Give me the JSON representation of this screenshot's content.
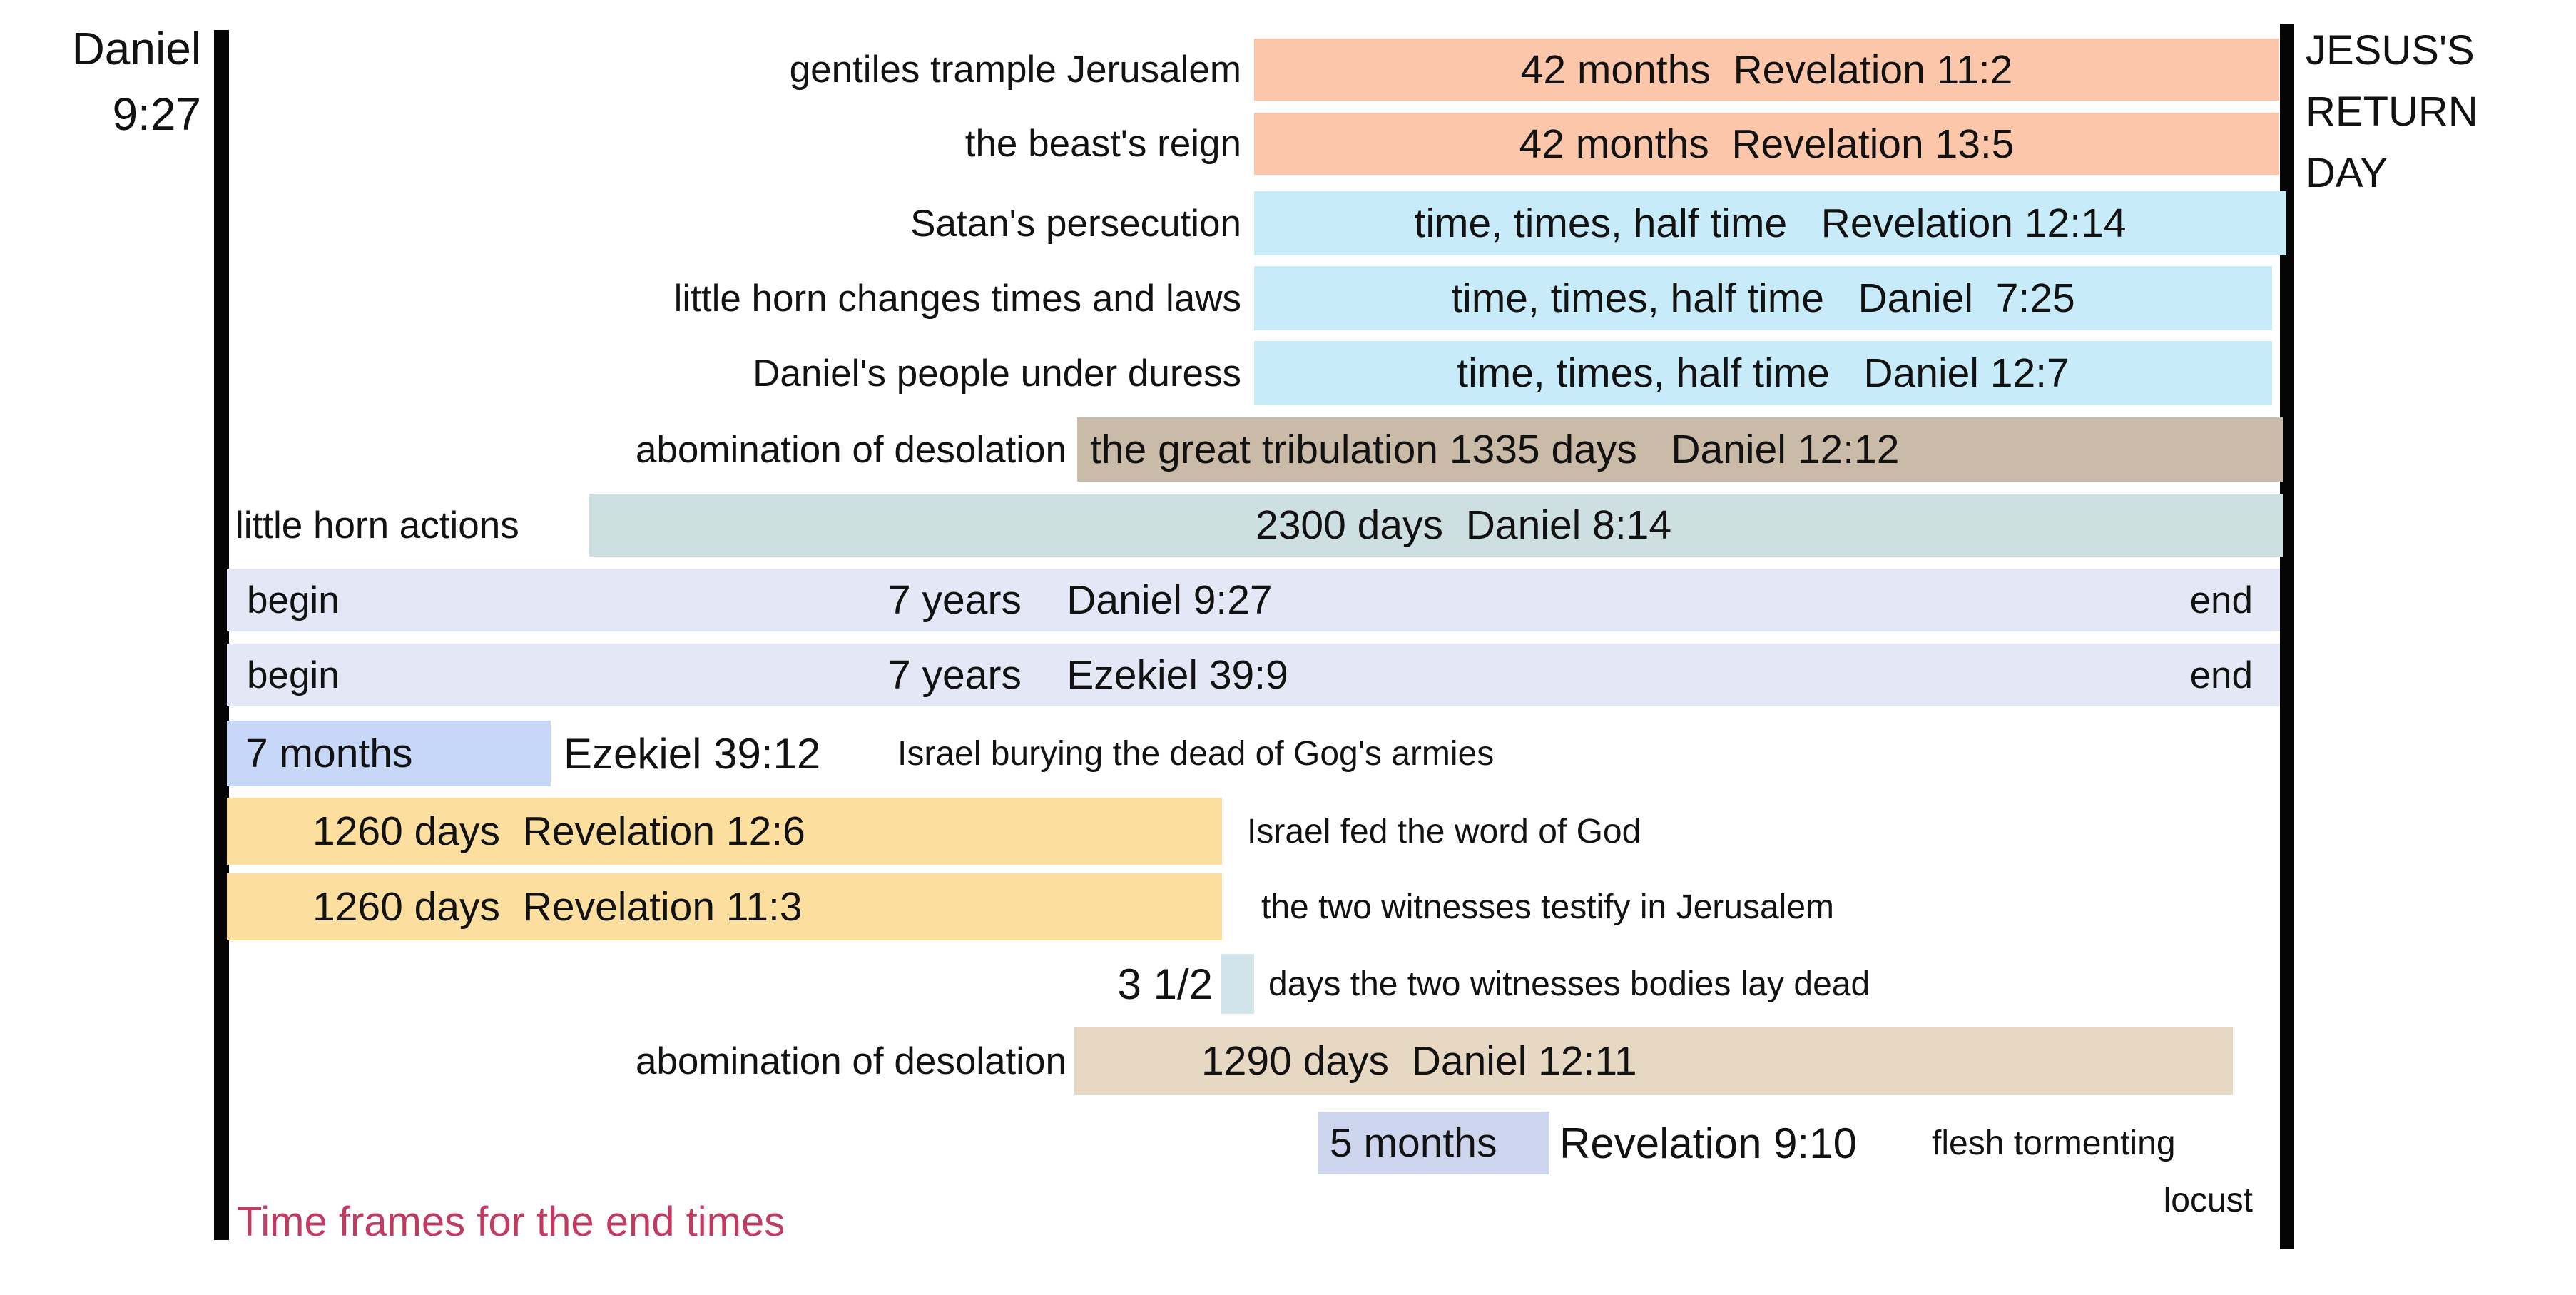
{
  "markers": {
    "left": {
      "line1": "Daniel",
      "line2": "9:27"
    },
    "right": {
      "line1": "JESUS'S",
      "line2": "RETURN",
      "line3": "DAY"
    }
  },
  "title": {
    "text": "Time frames for the end times",
    "color": "#c23a62"
  },
  "chart_data": {
    "type": "gantt",
    "axis": {
      "start": "Daniel 9:27",
      "end": "JESUS'S RETURN DAY"
    },
    "legend_position": "none",
    "rows": [
      {
        "event": "gentiles trample Jerusalem",
        "duration": "42 months",
        "reference": "Revelation 11:2",
        "bar_text": "42 months  Revelation 11:2",
        "color": "#fbc6a9",
        "span": [
          0.5,
          1.0
        ]
      },
      {
        "event": "the beast's reign",
        "duration": "42 months",
        "reference": "Revelation 13:5",
        "bar_text": "42 months  Revelation 13:5",
        "color": "#fbc6a9",
        "span": [
          0.5,
          1.0
        ]
      },
      {
        "event": "Satan's persecution",
        "duration": "time, times, half time",
        "reference": "Revelation 12:14",
        "bar_text": "time, times, half time   Revelation 12:14",
        "color": "#c8ebfa",
        "span": [
          0.5,
          1.0
        ]
      },
      {
        "event": "little horn changes times and laws",
        "duration": "time, times, half time",
        "reference": "Daniel  7:25",
        "bar_text": "time, times, half time   Daniel  7:25",
        "color": "#c8ebfa",
        "span": [
          0.5,
          1.0
        ]
      },
      {
        "event": "Daniel's people under duress",
        "duration": "time, times, half time",
        "reference": "Daniel 12:7",
        "bar_text": "time, times, half time   Daniel 12:7",
        "color": "#c8ebfa",
        "span": [
          0.5,
          1.0
        ]
      },
      {
        "event": "abomination of desolation",
        "duration": "1335 days",
        "reference": "Daniel 12:12",
        "bar_text": "the great tribulation 1335 days   Daniel 12:12",
        "color": "#cabba8",
        "span": [
          0.41,
          1.0
        ]
      },
      {
        "event": "little horn actions",
        "duration": "2300 days",
        "reference": "Daniel 8:14",
        "bar_text": "2300 days  Daniel 8:14",
        "color": "#cedfe2",
        "span": [
          0.18,
          1.0
        ]
      },
      {
        "begin_label": "begin",
        "end_label": "end",
        "duration": "7 years",
        "reference": "Daniel 9:27",
        "bar_text": "7 years    Daniel 9:27",
        "color": "#e4e7f5",
        "span": [
          0.0,
          1.0
        ]
      },
      {
        "begin_label": "begin",
        "end_label": "end",
        "duration": "7 years",
        "reference": "Ezekiel 39:9",
        "bar_text": "7 years    Ezekiel 39:9",
        "color": "#e4e7f5",
        "span": [
          0.0,
          1.0
        ]
      },
      {
        "duration": "7 months",
        "reference": "Ezekiel 39:12",
        "bar_text": "7 months",
        "annotation": "Israel burying the dead of Gog's armies",
        "color": "#c7d7f8",
        "span": [
          0.0,
          0.16
        ]
      },
      {
        "duration": "1260 days",
        "reference": "Revelation 12:6",
        "bar_text": "1260 days  Revelation 12:6",
        "annotation": "Israel fed the word of God",
        "color": "#fcdf9e",
        "span": [
          0.0,
          0.48
        ]
      },
      {
        "duration": "1260 days",
        "reference": "Revelation 11:3",
        "bar_text": "1260 days  Revelation 11:3",
        "annotation": "the two witnesses testify in Jerusalem",
        "color": "#fcdf9e",
        "span": [
          0.0,
          0.48
        ]
      },
      {
        "duration": "3 1/2 days",
        "prefix": "3 1/2",
        "annotation": "days the two witnesses bodies lay dead",
        "color": "#d0e4ea",
        "span": [
          0.48,
          0.5
        ]
      },
      {
        "event": "abomination of desolation",
        "duration": "1290 days",
        "reference": "Daniel 12:11",
        "bar_text": "1290 days  Daniel 12:11",
        "color": "#e7d8c3",
        "span": [
          0.41,
          0.98
        ]
      },
      {
        "duration": "5 months",
        "reference": "Revelation 9:10",
        "bar_text": "5 months",
        "annotation": "flesh tormenting",
        "annotation2": "locust",
        "color": "#ccd5ed",
        "span": [
          0.53,
          0.64
        ]
      }
    ]
  }
}
